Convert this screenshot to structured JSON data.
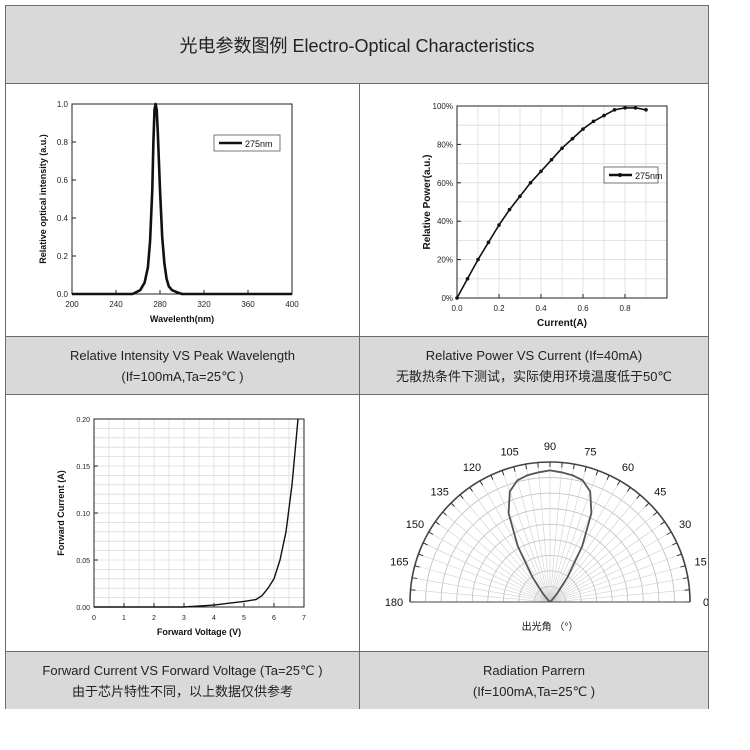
{
  "header": {
    "title": "光电参数图例 Electro-Optical Characteristics"
  },
  "panels": [
    {
      "caption_line1": "Relative Intensity VS Peak Wavelength",
      "caption_line2": "(If=100mA,Ta=25℃ )"
    },
    {
      "caption_line1": "Relative Power VS Current (If=40mA)",
      "caption_line2": "无散热条件下测试，实际使用环境温度低于50℃"
    },
    {
      "caption_line1": "Forward Current VS Forward Voltage (Ta=25℃ )",
      "caption_line2": "由于芯片特性不同，以上数据仅供参考"
    },
    {
      "caption_line1": "Radiation Parrern",
      "caption_line2": "(If=100mA,Ta=25℃ )"
    }
  ],
  "chart_data": [
    {
      "type": "line",
      "xlabel": "Wavelenth(nm)",
      "ylabel": "Relative optical intensity (a.u.)",
      "xlim": [
        200,
        400
      ],
      "ylim": [
        0,
        1.0
      ],
      "xticks": [
        "200",
        "240",
        "280",
        "320",
        "360",
        "400"
      ],
      "yticks": [
        "0.0",
        "0.2",
        "0.4",
        "0.6",
        "0.8",
        "1.0"
      ],
      "legend": "top-right",
      "series": [
        {
          "name": "275nm",
          "x": [
            200,
            255,
            262,
            266,
            269,
            271,
            273,
            274,
            275,
            276,
            277,
            278,
            280,
            282,
            284,
            286,
            288,
            291,
            295,
            300,
            310,
            400
          ],
          "y": [
            0.0,
            0.0,
            0.02,
            0.06,
            0.14,
            0.28,
            0.55,
            0.8,
            0.97,
            1.0,
            0.97,
            0.85,
            0.55,
            0.3,
            0.16,
            0.08,
            0.04,
            0.02,
            0.01,
            0.0,
            0.0,
            0.0
          ]
        }
      ]
    },
    {
      "type": "line",
      "xlabel": "Current(A)",
      "ylabel": "Relative Power(a.u.)",
      "xlim": [
        0.0,
        1.0
      ],
      "ylim": [
        0,
        100
      ],
      "xticks": [
        "0.0",
        "0.2",
        "0.4",
        "0.6",
        "0.8"
      ],
      "yticks": [
        "0%",
        "20%",
        "40%",
        "60%",
        "80%",
        "100%"
      ],
      "legend": "center-right",
      "series": [
        {
          "name": "275nm",
          "x": [
            0.0,
            0.05,
            0.1,
            0.15,
            0.2,
            0.25,
            0.3,
            0.35,
            0.4,
            0.45,
            0.5,
            0.55,
            0.6,
            0.65,
            0.7,
            0.75,
            0.8,
            0.85,
            0.9
          ],
          "y": [
            0,
            10,
            20,
            29,
            38,
            46,
            53,
            60,
            66,
            72,
            78,
            83,
            88,
            92,
            95,
            98,
            99,
            99,
            98
          ]
        }
      ]
    },
    {
      "type": "line",
      "xlabel": "Forward Voltage (V)",
      "ylabel": "Forward Current (A)",
      "xlim": [
        0,
        7
      ],
      "ylim": [
        0,
        0.2
      ],
      "xticks": [
        "0",
        "1",
        "2",
        "3",
        "4",
        "5",
        "6",
        "7"
      ],
      "yticks": [
        "0.00",
        "0.05",
        "0.10",
        "0.15",
        "0.20"
      ],
      "series": [
        {
          "x": [
            0,
            3.0,
            4.0,
            4.5,
            5.0,
            5.4,
            5.6,
            5.8,
            6.0,
            6.2,
            6.4,
            6.6,
            6.8
          ],
          "y": [
            0,
            0,
            0.002,
            0.004,
            0.006,
            0.008,
            0.012,
            0.02,
            0.03,
            0.05,
            0.08,
            0.13,
            0.2
          ]
        }
      ]
    },
    {
      "type": "line",
      "title": "",
      "xlabel": "出光角 （°）",
      "angle_labels": [
        "0",
        "15",
        "30",
        "45",
        "60",
        "75",
        "90",
        "105",
        "120",
        "135",
        "150",
        "165",
        "180"
      ],
      "series": [
        {
          "angle_deg": [
            0,
            30,
            45,
            50,
            55,
            60,
            65,
            70,
            75,
            80,
            85,
            90,
            95,
            100,
            105,
            110,
            115,
            120,
            125,
            130,
            135,
            150,
            180
          ],
          "r": [
            0,
            0,
            0.02,
            0.08,
            0.22,
            0.46,
            0.7,
            0.84,
            0.9,
            0.92,
            0.93,
            0.94,
            0.93,
            0.92,
            0.9,
            0.84,
            0.7,
            0.46,
            0.22,
            0.08,
            0.02,
            0,
            0
          ]
        }
      ]
    }
  ]
}
